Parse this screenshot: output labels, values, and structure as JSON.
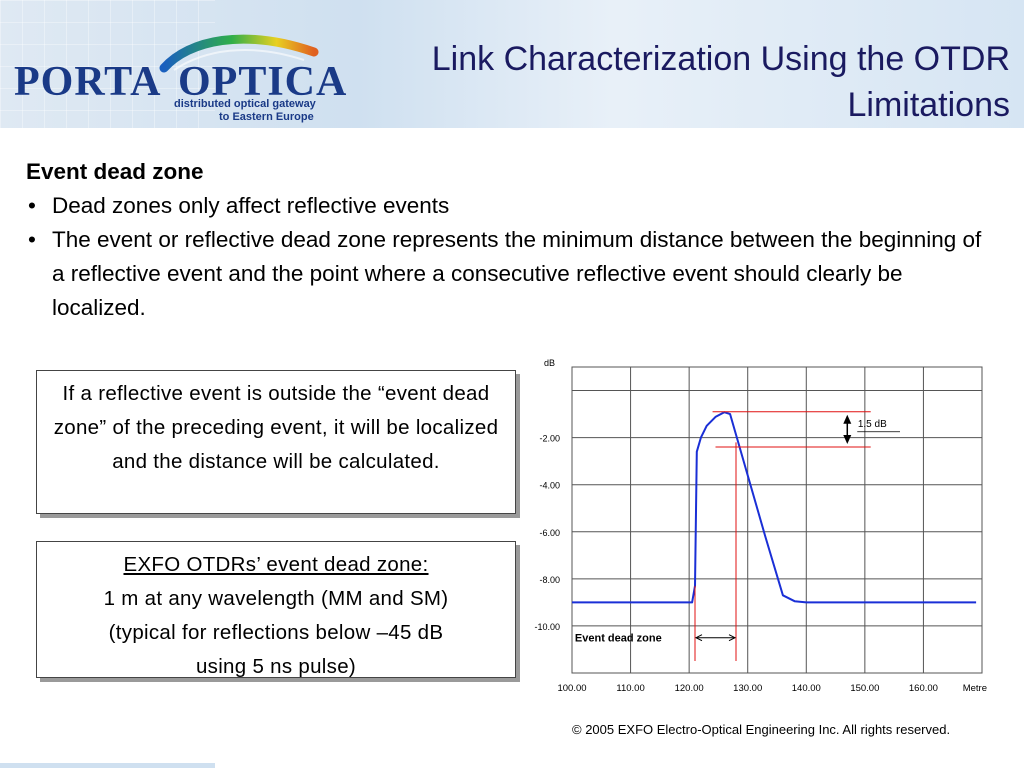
{
  "header": {
    "title_line1": "Link Characterization Using the OTDR",
    "title_line2": "Limitations",
    "logo_word_left": "PORTA",
    "logo_word_right": "OPTICA",
    "logo_tag_line1": "distributed optical gateway",
    "logo_tag_line2": "to Eastern Europe"
  },
  "content": {
    "heading": "Event dead zone",
    "bullets": [
      "Dead zones only affect reflective events",
      "The event or reflective dead zone represents the minimum distance between the beginning of a reflective event and the point where a consecutive reflective event should clearly be localized."
    ]
  },
  "box1": {
    "text": "If a reflective event is outside the “event dead zone” of the preceding event, it will be localized and the distance will be calculated."
  },
  "box2": {
    "line1": "EXFO OTDRs’ event dead zone:",
    "line2": "1 m at any wavelength (MM and SM)",
    "line3": "(typical for reflections below –45 dB",
    "line4": "using 5 ns pulse)"
  },
  "footer": {
    "copyright": "© 2005 EXFO Electro-Optical Engineering Inc. All rights reserved."
  },
  "chart_data": {
    "type": "line",
    "ylabel": "dB",
    "xunit": "Metre",
    "x_ticks": [
      "100.00",
      "110.00",
      "120.00",
      "130.00",
      "140.00",
      "150.00",
      "160.00"
    ],
    "y_ticks": [
      "-2.00",
      "-4.00",
      "-6.00",
      "-8.00",
      "-10.00"
    ],
    "xlim": [
      100,
      170
    ],
    "ylim": [
      -12,
      1
    ],
    "grid": true,
    "series": [
      {
        "color": "#1a2fd6",
        "x": [
          100,
          120.5,
          121,
          121.3,
          122,
          123,
          124.5,
          126,
          127,
          133,
          136,
          138,
          140,
          143,
          150,
          160,
          169
        ],
        "y": [
          -9.0,
          -9.0,
          -8.3,
          -2.6,
          -2.0,
          -1.5,
          -1.12,
          -0.92,
          -1.0,
          -6.2,
          -8.7,
          -8.95,
          -9.0,
          -9.0,
          -9.0,
          -9.0,
          -9.0
        ]
      }
    ],
    "annotations": {
      "delta_label": "1.5 dB",
      "dead_zone_label": "Event dead zone",
      "marker_x": [
        121,
        128
      ],
      "peak_db": -0.9,
      "delta_db": -2.4
    },
    "marker_color": "#e01010"
  }
}
